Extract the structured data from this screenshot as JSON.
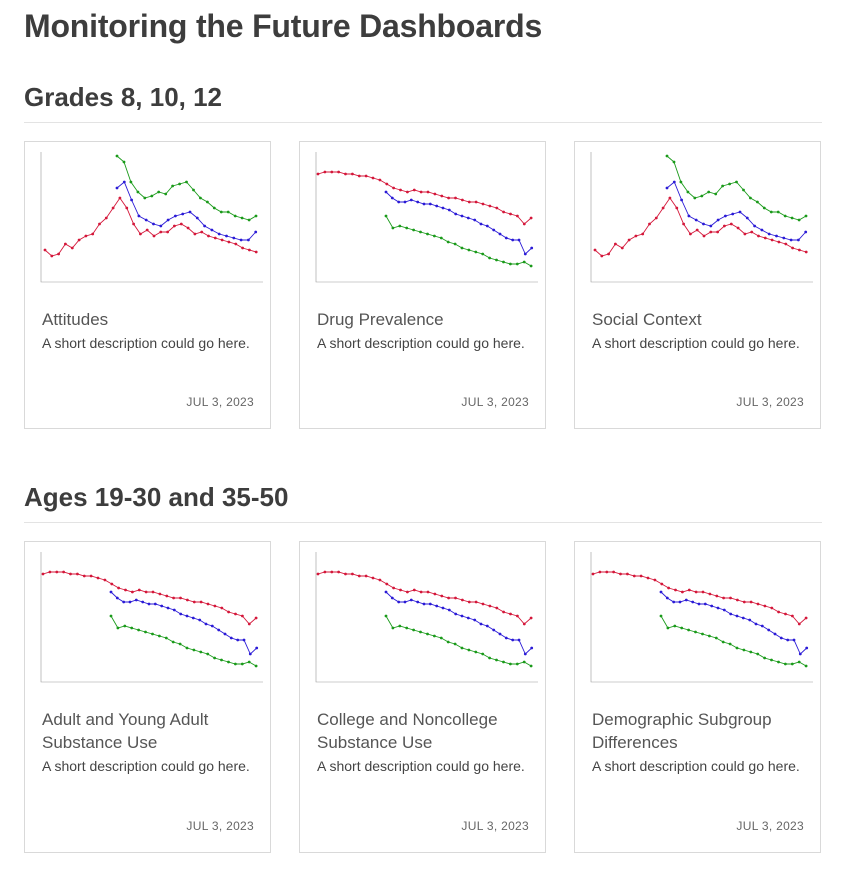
{
  "page": {
    "title": "Monitoring the Future Dashboards"
  },
  "sections": [
    {
      "heading": "Grades 8, 10, 12",
      "cards": [
        {
          "title": "Attitudes",
          "description": "A short description could go here.",
          "date": "JUL 3, 2023",
          "thumbnail": "attitudes-chart-thumbnail"
        },
        {
          "title": "Drug Prevalence",
          "description": "A short description could go here.",
          "date": "JUL 3, 2023",
          "thumbnail": "prevalence-chart-thumbnail"
        },
        {
          "title": "Social Context",
          "description": "A short description could go here.",
          "date": "JUL 3, 2023",
          "thumbnail": "attitudes-chart-thumbnail"
        }
      ]
    },
    {
      "heading": "Ages 19-30 and 35-50",
      "cards": [
        {
          "title": "Adult and Young Adult Substance Use",
          "description": "A short description could go here.",
          "date": "JUL 3, 2023",
          "thumbnail": "prevalence-chart-thumbnail"
        },
        {
          "title": "College and Noncollege Substance Use",
          "description": "A short description could go here.",
          "date": "JUL 3, 2023",
          "thumbnail": "prevalence-chart-thumbnail"
        },
        {
          "title": "Demographic Subgroup Differences",
          "description": "A short description could go here.",
          "date": "JUL 3, 2023",
          "thumbnail": "prevalence-chart-thumbnail"
        }
      ]
    }
  ],
  "colors": {
    "series_green": "#1a9a1a",
    "series_blue": "#2a1ad6",
    "series_red": "#d4173a"
  }
}
